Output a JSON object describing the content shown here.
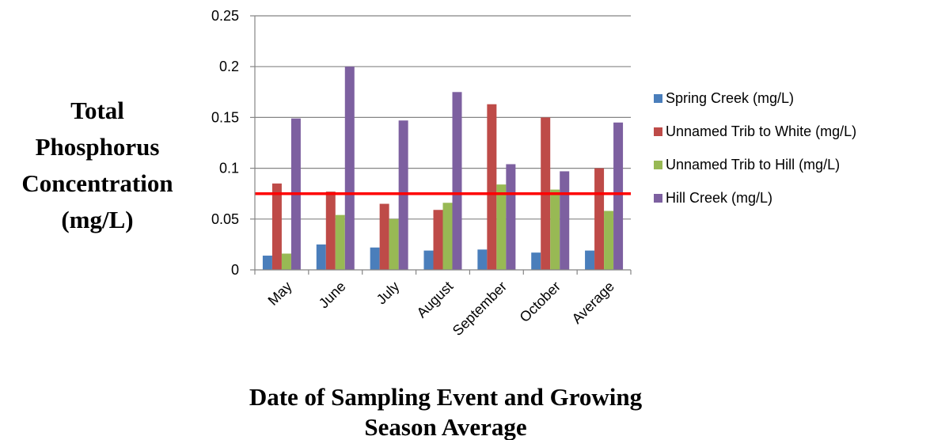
{
  "chart_data": {
    "type": "bar",
    "categories": [
      "May",
      "June",
      "July",
      "August",
      "September",
      "October",
      "Average"
    ],
    "series": [
      {
        "name": "Spring Creek (mg/L)",
        "color": "#4a7ebb",
        "values": [
          0.014,
          0.025,
          0.022,
          0.019,
          0.02,
          0.017,
          0.019
        ]
      },
      {
        "name": "Unnamed Trib to White (mg/L)",
        "color": "#be4b48",
        "values": [
          0.085,
          0.077,
          0.065,
          0.059,
          0.163,
          0.15,
          0.1
        ]
      },
      {
        "name": "Unnamed Trib to Hill (mg/L)",
        "color": "#98b954",
        "values": [
          0.016,
          0.054,
          0.05,
          0.066,
          0.084,
          0.079,
          0.058
        ]
      },
      {
        "name": "Hill Creek (mg/L)",
        "color": "#7d60a0",
        "values": [
          0.149,
          0.2,
          0.147,
          0.175,
          0.104,
          0.097,
          0.145
        ]
      }
    ],
    "ylim": [
      0,
      0.25
    ],
    "yticks": [
      "0",
      "0.05",
      "0.1",
      "0.15",
      "0.2",
      "0.25"
    ],
    "ytick_values": [
      0,
      0.05,
      0.1,
      0.15,
      0.2,
      0.25
    ],
    "ylabel_lines": [
      "Total",
      "Phosphorus",
      "Concentration",
      "(mg/L)"
    ],
    "xlabel_lines": [
      "Date of Sampling Event and Growing",
      "Season Average"
    ],
    "reference_line": {
      "value": 0.075,
      "color": "#ff0000"
    },
    "grid": "horizontal",
    "legend_position": "right"
  }
}
